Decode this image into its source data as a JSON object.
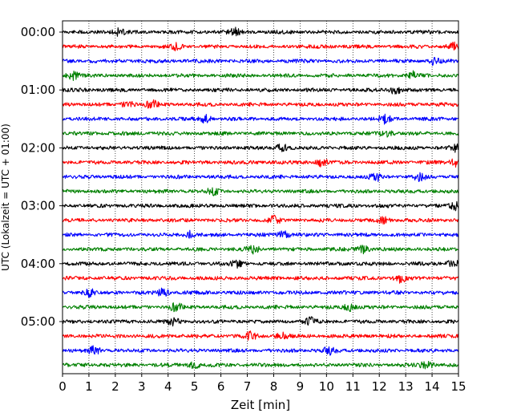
{
  "chart_data": {
    "type": "line",
    "title": "",
    "xlabel": "Zeit  [min]",
    "ylabel": "UTC (Lokalzeit = UTC + 01:00)",
    "x_ticks": [
      0,
      1,
      2,
      3,
      4,
      5,
      6,
      7,
      8,
      9,
      10,
      11,
      12,
      13,
      14,
      15
    ],
    "xlim": [
      0,
      15
    ],
    "grid": "vertical dotted lines at each minute",
    "y_tick_labels": [
      "00:00",
      "01:00",
      "02:00",
      "03:00",
      "04:00",
      "05:00"
    ],
    "trace_interval_min": 15,
    "trace_colors": [
      "#000000",
      "#ff0000",
      "#0000ff",
      "#008000"
    ],
    "traces": [
      {
        "start": "00:00",
        "color": "#000000",
        "events_min": [
          2.1,
          6.5
        ]
      },
      {
        "start": "00:15",
        "color": "#ff0000",
        "events_min": [
          4.3,
          14.8
        ]
      },
      {
        "start": "00:30",
        "color": "#0000ff",
        "events_min": [
          14.1
        ]
      },
      {
        "start": "00:45",
        "color": "#008000",
        "events_min": [
          0.4,
          13.3
        ]
      },
      {
        "start": "01:00",
        "color": "#000000",
        "events_min": [
          12.6
        ]
      },
      {
        "start": "01:15",
        "color": "#ff0000",
        "events_min": [
          2.5,
          3.4
        ]
      },
      {
        "start": "01:30",
        "color": "#0000ff",
        "events_min": [
          5.4,
          12.2
        ]
      },
      {
        "start": "01:45",
        "color": "#008000",
        "events_min": [
          12.3
        ]
      },
      {
        "start": "02:00",
        "color": "#000000",
        "events_min": [
          8.3,
          14.9
        ]
      },
      {
        "start": "02:15",
        "color": "#ff0000",
        "events_min": [
          9.8,
          14.9
        ]
      },
      {
        "start": "02:30",
        "color": "#0000ff",
        "events_min": [
          11.9,
          13.5
        ]
      },
      {
        "start": "02:45",
        "color": "#008000",
        "events_min": [
          5.7
        ]
      },
      {
        "start": "03:00",
        "color": "#000000",
        "events_min": [
          14.9
        ]
      },
      {
        "start": "03:15",
        "color": "#ff0000",
        "events_min": [
          8.0,
          12.1
        ]
      },
      {
        "start": "03:30",
        "color": "#0000ff",
        "events_min": [
          4.8,
          8.4
        ]
      },
      {
        "start": "03:45",
        "color": "#008000",
        "events_min": [
          7.2,
          11.4
        ]
      },
      {
        "start": "04:00",
        "color": "#000000",
        "events_min": [
          6.6,
          14.8
        ]
      },
      {
        "start": "04:15",
        "color": "#ff0000",
        "events_min": [
          12.8
        ]
      },
      {
        "start": "04:30",
        "color": "#0000ff",
        "events_min": [
          1.0,
          3.8
        ]
      },
      {
        "start": "04:45",
        "color": "#008000",
        "events_min": [
          4.3,
          10.9
        ]
      },
      {
        "start": "05:00",
        "color": "#000000",
        "events_min": [
          4.2,
          9.4
        ]
      },
      {
        "start": "05:15",
        "color": "#ff0000",
        "events_min": [
          7.1,
          8.3
        ]
      },
      {
        "start": "05:30",
        "color": "#0000ff",
        "events_min": [
          1.2,
          10.1
        ]
      },
      {
        "start": "05:45",
        "color": "#008000",
        "events_min": [
          5.0,
          13.8
        ]
      }
    ]
  }
}
